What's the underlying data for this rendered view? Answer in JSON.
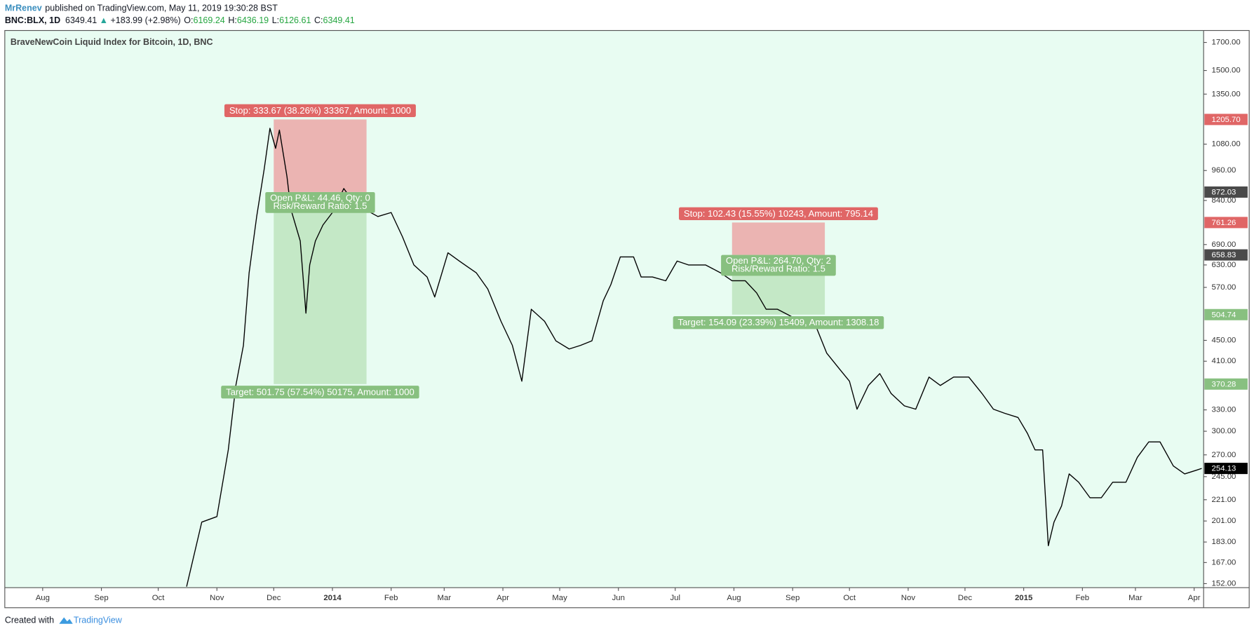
{
  "header": {
    "author": "MrRenev",
    "published": "published on TradingView.com, May 11, 2019 19:30:28 BST",
    "symbol": "BNC:BLX, 1D",
    "price": "6349.41",
    "arrow": "▲",
    "change": "+183.99 (+2.98%)",
    "o_label": "O:",
    "o": "6169.24",
    "h_label": "H:",
    "h": "6436.19",
    "l_label": "L:",
    "l": "6126.61",
    "c_label": "C:",
    "c": "6349.41"
  },
  "footer": {
    "created": "Created with",
    "brand": "TradingView"
  },
  "chart_data": {
    "type": "line",
    "title": "BraveNewCoin Liquid Index for Bitcoin, 1D, BNC",
    "log": true,
    "background": "#e8fcf2",
    "series": [
      {
        "name": "BNC:BLX",
        "color": "#000000",
        "x": [
          "2013-10-16",
          "2013-10-24",
          "2013-11-01",
          "2013-11-07",
          "2013-11-11",
          "2013-11-15",
          "2013-11-18",
          "2013-11-22",
          "2013-11-26",
          "2013-11-29",
          "2013-12-02",
          "2013-12-04",
          "2013-12-08",
          "2013-12-10",
          "2013-12-15",
          "2013-12-18",
          "2013-12-20",
          "2013-12-23",
          "2013-12-27",
          "2014-01-01",
          "2014-01-07",
          "2014-01-13",
          "2014-01-19",
          "2014-01-25",
          "2014-02-01",
          "2014-02-07",
          "2014-02-13",
          "2014-02-20",
          "2014-02-24",
          "2014-03-03",
          "2014-03-09",
          "2014-03-18",
          "2014-03-24",
          "2014-03-31",
          "2014-04-06",
          "2014-04-11",
          "2014-04-16",
          "2014-04-23",
          "2014-04-29",
          "2014-05-06",
          "2014-05-12",
          "2014-05-18",
          "2014-05-24",
          "2014-05-28",
          "2014-06-02",
          "2014-06-09",
          "2014-06-13",
          "2014-06-19",
          "2014-06-26",
          "2014-07-02",
          "2014-07-08",
          "2014-07-17",
          "2014-07-25",
          "2014-07-31",
          "2014-08-07",
          "2014-08-13",
          "2014-08-18",
          "2014-08-24",
          "2014-09-01",
          "2014-09-07",
          "2014-09-13",
          "2014-09-19",
          "2014-09-26",
          "2014-10-01",
          "2014-10-05",
          "2014-10-11",
          "2014-10-17",
          "2014-10-23",
          "2014-10-30",
          "2014-11-05",
          "2014-11-12",
          "2014-11-18",
          "2014-11-25",
          "2014-12-03",
          "2014-12-10",
          "2014-12-16",
          "2014-12-22",
          "2014-12-29",
          "2015-01-03",
          "2015-01-07",
          "2015-01-11",
          "2015-01-14",
          "2015-01-17",
          "2015-01-21",
          "2015-01-25",
          "2015-01-30",
          "2015-02-05",
          "2015-02-11",
          "2015-02-17",
          "2015-02-24",
          "2015-03-02",
          "2015-03-08",
          "2015-03-14",
          "2015-03-21",
          "2015-03-27",
          "2015-04-02",
          "2015-04-05"
        ],
        "values": [
          150,
          200,
          205,
          276,
          368,
          440,
          608,
          782,
          968,
          1159,
          1060,
          1150,
          934,
          809,
          701,
          508,
          630,
          701,
          753,
          796,
          886,
          825,
          804,
          782,
          796,
          714,
          630,
          597,
          546,
          665,
          641,
          608,
          566,
          490,
          440,
          375,
          517,
          490,
          449,
          433,
          440,
          449,
          537,
          577,
          653,
          653,
          597,
          597,
          587,
          641,
          630,
          630,
          608,
          587,
          587,
          556,
          517,
          517,
          499,
          482,
          482,
          425,
          395,
          375,
          331,
          368,
          388,
          355,
          336,
          331,
          382,
          368,
          382,
          382,
          355,
          331,
          325,
          319,
          297,
          276,
          276,
          180,
          200,
          215,
          248,
          239,
          223,
          223,
          239,
          239,
          267,
          286,
          286,
          257,
          248,
          252,
          254.13
        ]
      }
    ],
    "xlim": [
      "2013-07-12",
      "2015-04-06"
    ],
    "xticks": [
      {
        "value": "2013-08-01",
        "label": "Aug"
      },
      {
        "value": "2013-09-01",
        "label": "Sep"
      },
      {
        "value": "2013-10-01",
        "label": "Oct"
      },
      {
        "value": "2013-11-01",
        "label": "Nov"
      },
      {
        "value": "2013-12-01",
        "label": "Dec"
      },
      {
        "value": "2014-01-01",
        "label": "2014"
      },
      {
        "value": "2014-02-01",
        "label": "Feb"
      },
      {
        "value": "2014-03-01",
        "label": "Mar"
      },
      {
        "value": "2014-04-01",
        "label": "Apr"
      },
      {
        "value": "2014-05-01",
        "label": "May"
      },
      {
        "value": "2014-06-01",
        "label": "Jun"
      },
      {
        "value": "2014-07-01",
        "label": "Jul"
      },
      {
        "value": "2014-08-01",
        "label": "Aug"
      },
      {
        "value": "2014-09-01",
        "label": "Sep"
      },
      {
        "value": "2014-10-01",
        "label": "Oct"
      },
      {
        "value": "2014-11-01",
        "label": "Nov"
      },
      {
        "value": "2014-12-01",
        "label": "Dec"
      },
      {
        "value": "2015-01-01",
        "label": "2015"
      },
      {
        "value": "2015-02-01",
        "label": "Feb"
      },
      {
        "value": "2015-03-01",
        "label": "Mar"
      },
      {
        "value": "2015-04-01",
        "label": "Apr"
      }
    ],
    "ylim": [
      149.3,
      1793
    ],
    "yticks": [
      {
        "value": 1700,
        "label": "1700.00"
      },
      {
        "value": 1500,
        "label": "1500.00"
      },
      {
        "value": 1350,
        "label": "1350.00"
      },
      {
        "value": 1080,
        "label": "1080.00"
      },
      {
        "value": 960,
        "label": "960.00"
      },
      {
        "value": 840,
        "label": "840.00"
      },
      {
        "value": 690,
        "label": "690.00"
      },
      {
        "value": 630,
        "label": "630.00"
      },
      {
        "value": 570,
        "label": "570.00"
      },
      {
        "value": 450,
        "label": "450.00"
      },
      {
        "value": 410,
        "label": "410.00"
      },
      {
        "value": 330,
        "label": "330.00"
      },
      {
        "value": 300,
        "label": "300.00"
      },
      {
        "value": 270,
        "label": "270.00"
      },
      {
        "value": 245,
        "label": "245.00"
      },
      {
        "value": 221,
        "label": "221.00"
      },
      {
        "value": 201,
        "label": "201.00"
      },
      {
        "value": 183,
        "label": "183.00"
      },
      {
        "value": 167,
        "label": "167.00"
      },
      {
        "value": 152,
        "label": "152.00"
      }
    ],
    "last_price": {
      "value": 254.13,
      "label": "254.13"
    },
    "positions": [
      {
        "start": "2013-12-01",
        "end": "2014-01-19",
        "stop": {
          "value": 1205.7,
          "label": "1205.70"
        },
        "entry": {
          "value": 872.03,
          "label": "872.03"
        },
        "target": {
          "value": 370.28,
          "label": "370.28"
        },
        "stop_text": "Stop: 333.67 (38.26%) 33367, Amount: 1000",
        "pnl_text": "Open P&L: 44.46, Qty: 0",
        "rr_text": "Risk/Reward Ratio: 1.5",
        "target_text": "Target: 501.75 (57.54%) 50175, Amount: 1000"
      },
      {
        "start": "2014-07-31",
        "end": "2014-09-18",
        "stop": {
          "value": 761.26,
          "label": "761.26"
        },
        "entry": {
          "value": 658.83,
          "label": "658.83"
        },
        "target": {
          "value": 504.74,
          "label": "504.74"
        },
        "stop_text": "Stop: 102.43 (15.55%) 10243, Amount: 795.14",
        "pnl_text": "Open P&L: 264.70, Qty: 2",
        "rr_text": "Risk/Reward Ratio: 1.5",
        "target_text": "Target: 154.09 (23.39%) 15409, Amount: 1308.18"
      }
    ],
    "stop_color": "#e06666",
    "stop_fill": "#ebb4b2",
    "target_color": "#88c080",
    "target_fill": "#c4e8c6",
    "entry_color": "#4a4a4a"
  }
}
